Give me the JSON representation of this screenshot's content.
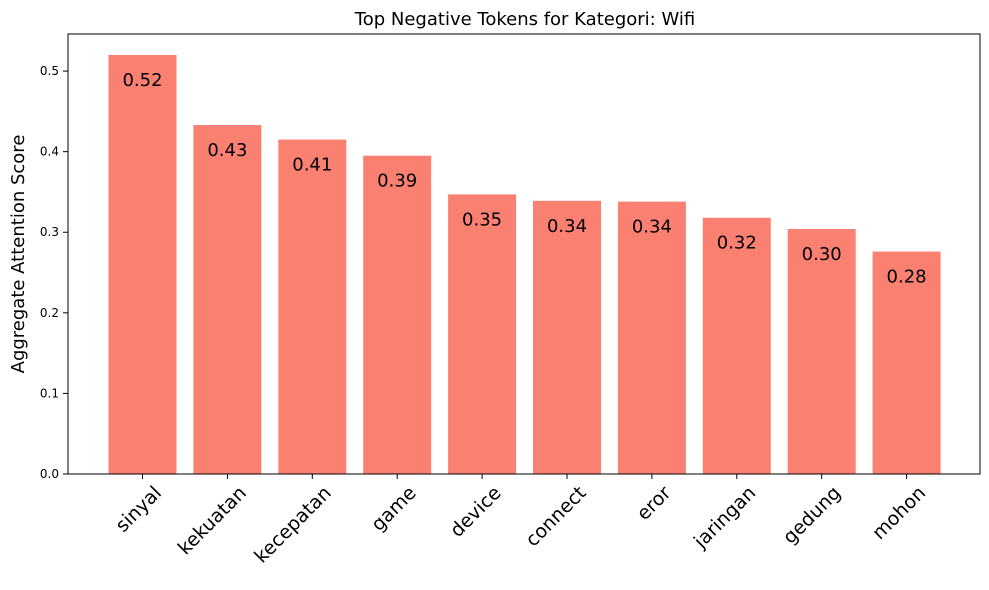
{
  "chart_data": {
    "type": "bar",
    "title": "Top Negative Tokens for Kategori: Wifi",
    "xlabel": "",
    "ylabel": "Aggregate Attention Score",
    "categories": [
      "sinyal",
      "kekuatan",
      "kecepatan",
      "game",
      "device",
      "connect",
      "eror",
      "jaringan",
      "gedung",
      "mohon"
    ],
    "values": [
      0.52,
      0.433,
      0.415,
      0.395,
      0.347,
      0.339,
      0.338,
      0.318,
      0.304,
      0.276
    ],
    "data_labels": [
      "0.52",
      "0.43",
      "0.41",
      "0.39",
      "0.35",
      "0.34",
      "0.34",
      "0.32",
      "0.30",
      "0.28"
    ],
    "ylim": [
      0,
      0.546
    ],
    "yticks": [
      0.0,
      0.1,
      0.2,
      0.3,
      0.4,
      0.5
    ],
    "ytick_labels": [
      "0.0",
      "0.1",
      "0.2",
      "0.3",
      "0.4",
      "0.5"
    ],
    "grid": false,
    "legend": "none",
    "colors": {
      "bar": "#fa8072",
      "axis": "#000000",
      "text": "#000000"
    }
  }
}
